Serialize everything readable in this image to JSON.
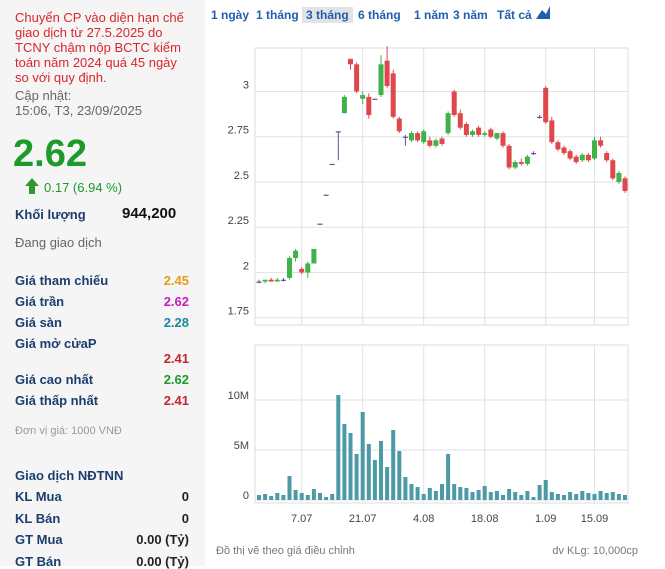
{
  "toolbar": {
    "ranges": [
      "1 ngày",
      "1 tháng",
      "3 tháng",
      "6 tháng",
      "1 năm",
      "3 năm",
      "Tất cả"
    ],
    "selected": 2
  },
  "panel": {
    "notice_lines": [
      "Chuyển CP vào diện hạn chế",
      "giao dịch từ 27.5.2025 do",
      "TCNY chậm nộp BCTC kiểm",
      "toán năm 2024 quá 45 ngày",
      "so với quy định."
    ],
    "updated_label": "Cập nhật:",
    "updated_time": "15:06, T3, 23/09/2025",
    "price": "2.62",
    "change": "0.17 (6.94 %)",
    "volume_label": "Khối lượng",
    "volume_value": "944,200",
    "status": "Đang giao dịch",
    "rows": [
      {
        "label": "Giá tham chiếu",
        "value": "2.45",
        "color": "#e59b1c"
      },
      {
        "label": "Giá trần",
        "value": "2.62",
        "color": "#c21ec2"
      },
      {
        "label": "Giá sàn",
        "value": "2.28",
        "color": "#1b8a9a"
      },
      {
        "label": "Giá mở cửaP",
        "value": "2.41",
        "color": "#c0282d"
      },
      {
        "label": "Giá cao nhất",
        "value": "2.62",
        "color": "#1d9a2a"
      },
      {
        "label": "Giá thấp nhất",
        "value": "2.41",
        "color": "#c0282d"
      }
    ],
    "unit_note": "Đơn vị giá: 1000 VNĐ",
    "foreign_title": "Giao dịch NĐTNN",
    "foreign_rows": [
      {
        "label": "KL Mua",
        "value": "0"
      },
      {
        "label": "KL Bán",
        "value": "0"
      },
      {
        "label": "GT Mua",
        "value": "0.00 (Tỷ)"
      },
      {
        "label": "GT Bán",
        "value": "0.00 (Tỷ)"
      }
    ]
  },
  "chart_data": {
    "type": "candlestick",
    "categories": [
      null,
      null,
      null,
      null,
      null,
      null,
      null,
      "7.07",
      null,
      null,
      null,
      null,
      null,
      null,
      null,
      null,
      null,
      "21.07",
      null,
      null,
      null,
      null,
      null,
      null,
      null,
      null,
      null,
      "4.08",
      null,
      null,
      null,
      null,
      null,
      null,
      null,
      null,
      null,
      "18.08",
      null,
      null,
      null,
      null,
      null,
      null,
      null,
      null,
      null,
      "1.09",
      null,
      null,
      null,
      null,
      null,
      null,
      null,
      "15.09",
      null,
      null,
      null,
      null,
      null
    ],
    "open": [
      1.95,
      1.95,
      1.96,
      1.95,
      1.96,
      1.97,
      2.08,
      2.02,
      2.0,
      2.05,
      2.27,
      2.43,
      2.6,
      2.78,
      2.88,
      3.18,
      3.15,
      2.96,
      2.97,
      2.96,
      2.98,
      3.17,
      3.1,
      2.85,
      2.75,
      2.73,
      2.77,
      2.72,
      2.73,
      2.7,
      2.74,
      2.77,
      3.0,
      2.88,
      2.82,
      2.76,
      2.8,
      2.76,
      2.79,
      2.74,
      2.77,
      2.7,
      2.58,
      2.61,
      2.6,
      2.66,
      2.86,
      3.02,
      2.84,
      2.72,
      2.69,
      2.67,
      2.64,
      2.62,
      2.65,
      2.63,
      2.73,
      2.66,
      2.62,
      2.5,
      2.52
    ],
    "high": [
      1.96,
      1.96,
      1.97,
      1.97,
      1.97,
      2.09,
      2.13,
      2.03,
      2.06,
      2.13,
      2.27,
      2.43,
      2.6,
      2.78,
      2.98,
      3.18,
      3.16,
      3.0,
      2.99,
      2.96,
      3.2,
      3.25,
      3.12,
      2.86,
      2.76,
      2.78,
      2.78,
      2.79,
      2.75,
      2.74,
      2.75,
      2.89,
      3.01,
      2.9,
      2.83,
      2.79,
      2.81,
      2.78,
      2.8,
      2.77,
      2.78,
      2.71,
      2.62,
      2.63,
      2.65,
      2.67,
      2.87,
      3.03,
      2.86,
      2.73,
      2.7,
      2.68,
      2.65,
      2.66,
      2.66,
      2.75,
      2.75,
      2.67,
      2.63,
      2.56,
      2.53
    ],
    "low": [
      1.94,
      1.94,
      1.95,
      1.95,
      1.95,
      1.96,
      2.06,
      1.99,
      1.97,
      2.05,
      2.27,
      2.43,
      2.6,
      2.62,
      2.88,
      3.12,
      2.99,
      2.93,
      2.85,
      2.96,
      2.97,
      3.02,
      2.85,
      2.77,
      2.7,
      2.72,
      2.72,
      2.71,
      2.69,
      2.69,
      2.7,
      2.76,
      2.86,
      2.79,
      2.75,
      2.75,
      2.75,
      2.75,
      2.74,
      2.73,
      2.69,
      2.57,
      2.57,
      2.59,
      2.59,
      2.65,
      2.85,
      2.82,
      2.71,
      2.67,
      2.65,
      2.62,
      2.6,
      2.61,
      2.61,
      2.62,
      2.69,
      2.61,
      2.51,
      2.49,
      2.44
    ],
    "close": [
      1.95,
      1.96,
      1.95,
      1.96,
      1.96,
      2.08,
      2.12,
      2.0,
      2.05,
      2.13,
      2.27,
      2.43,
      2.6,
      2.78,
      2.97,
      3.15,
      3.0,
      2.98,
      2.87,
      2.96,
      3.15,
      3.03,
      2.86,
      2.78,
      2.75,
      2.77,
      2.73,
      2.78,
      2.7,
      2.73,
      2.71,
      2.88,
      2.87,
      2.8,
      2.76,
      2.78,
      2.76,
      2.77,
      2.75,
      2.77,
      2.7,
      2.58,
      2.61,
      2.6,
      2.64,
      2.66,
      2.86,
      2.83,
      2.72,
      2.68,
      2.66,
      2.63,
      2.61,
      2.65,
      2.62,
      2.73,
      2.7,
      2.62,
      2.52,
      2.55,
      2.45
    ],
    "up_color": "#3fb24a",
    "down_color": "#e0474c",
    "flat_color": "#6a4c93",
    "ylim": [
      1.71,
      3.24
    ],
    "yticks": [
      1.75,
      2,
      2.25,
      2.5,
      2.75,
      3
    ],
    "grid": true,
    "volume": {
      "color": "#4b9aa5",
      "values": [
        500000,
        600000,
        400000,
        700000,
        500000,
        2400000,
        1000000,
        700000,
        500000,
        1100000,
        700000,
        300000,
        600000,
        10500000,
        7600000,
        6700000,
        4600000,
        8800000,
        5600000,
        4000000,
        5900000,
        3300000,
        7000000,
        4900000,
        2300000,
        1600000,
        1300000,
        600000,
        1200000,
        900000,
        1600000,
        4600000,
        1600000,
        1300000,
        1200000,
        800000,
        1000000,
        1400000,
        800000,
        900000,
        500000,
        1100000,
        800000,
        500000,
        900000,
        300000,
        1500000,
        2000000,
        800000,
        600000,
        500000,
        800000,
        600000,
        900000,
        700000,
        600000,
        900000,
        700000,
        800000,
        600000,
        500000
      ],
      "ylim": [
        0,
        15500000
      ],
      "yticks": [
        0,
        {
          "value": 5000000,
          "label": "5M"
        },
        {
          "value": 10000000,
          "label": "10M"
        }
      ]
    },
    "footnote": "Đồ thị vẽ theo giá điều chỉnh",
    "unit_note": "dv KLg: 10,000cp"
  }
}
